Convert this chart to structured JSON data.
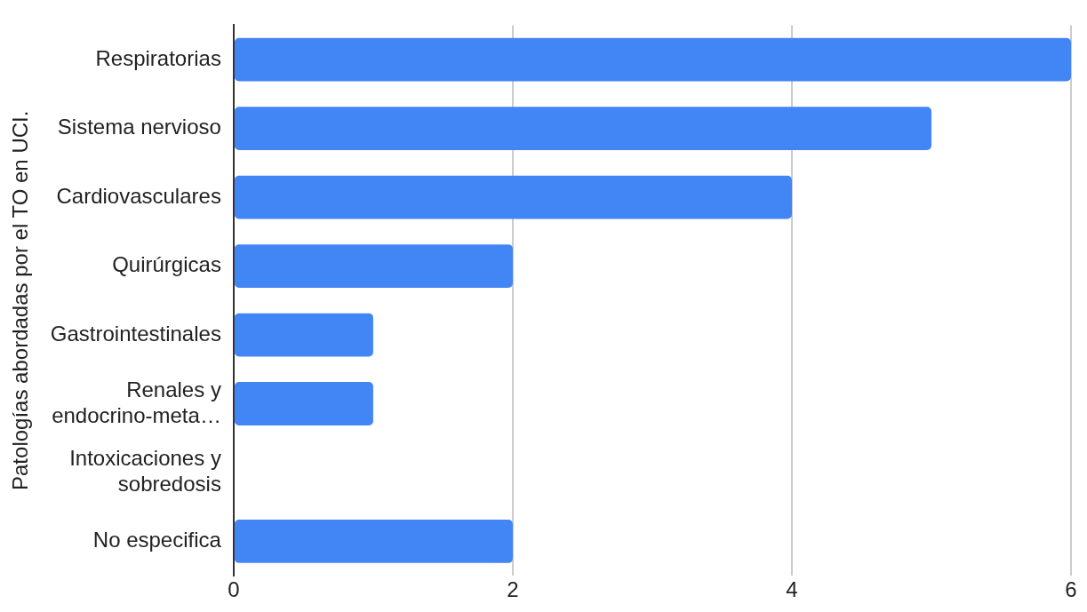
{
  "chart_data": {
    "type": "bar",
    "orientation": "horizontal",
    "ylabel": "Patologías abordadas por el TO en UCI.",
    "categories": [
      "Respiratorias",
      "Sistema nervioso",
      "Cardiovasculares",
      "Quirúrgicas",
      "Gastrointestinales",
      "Renales y\nendocrino-meta…",
      "Intoxicaciones y\nsobredosis",
      "No especifica"
    ],
    "values": [
      6,
      5,
      4,
      2,
      1,
      1,
      0,
      2
    ],
    "color": "#4285f4",
    "xlim": [
      0,
      6
    ],
    "xticks": [
      0,
      2,
      4,
      6
    ],
    "grid": "x",
    "legend": false
  }
}
